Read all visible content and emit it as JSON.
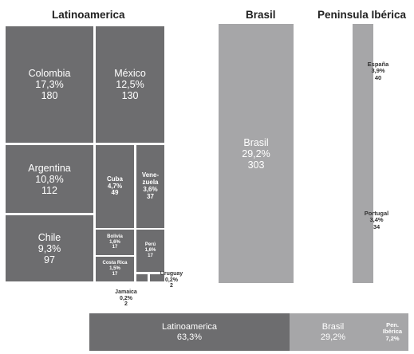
{
  "headers": {
    "latinoamerica": "Latinoamerica",
    "brasil": "Brasil",
    "peninsula": "Peninsula Ibérica"
  },
  "colors": {
    "dark": "#6d6d6f",
    "light": "#a6a6a8",
    "text_light": "#ffffff",
    "text_dark": "#333333"
  },
  "chart_data": [
    {
      "type": "treemap",
      "title": "Latinoamerica",
      "items": [
        {
          "id": "colombia",
          "lines": [
            "Colombia",
            "17,3%",
            "180"
          ],
          "percent": 17.3,
          "value": 180
        },
        {
          "id": "mexico",
          "lines": [
            "México",
            "12,5%",
            "130"
          ],
          "percent": 12.5,
          "value": 130
        },
        {
          "id": "argentina",
          "lines": [
            "Argentina",
            "10,8%",
            "112"
          ],
          "percent": 10.8,
          "value": 112
        },
        {
          "id": "chile",
          "lines": [
            "Chile",
            "9,3%",
            "97"
          ],
          "percent": 9.3,
          "value": 97
        },
        {
          "id": "cuba",
          "lines": [
            "Cuba",
            "4,7%",
            "49"
          ],
          "percent": 4.7,
          "value": 49
        },
        {
          "id": "venezuela",
          "lines": [
            "Vene-",
            "zuela",
            "3,6%",
            "37"
          ],
          "percent": 3.6,
          "value": 37
        },
        {
          "id": "bolivia",
          "lines": [
            "Bolivia",
            "1,6%",
            "17"
          ],
          "percent": 1.6,
          "value": 17
        },
        {
          "id": "peru",
          "lines": [
            "Perú",
            "1,6%",
            "17"
          ],
          "percent": 1.6,
          "value": 17
        },
        {
          "id": "costa-rica",
          "lines": [
            "Costa Rica",
            "1,5%",
            "17"
          ],
          "percent": 1.5,
          "value": 17
        },
        {
          "id": "jamaica",
          "lines": [
            "Jamaica",
            "0,2%",
            "2"
          ],
          "percent": 0.2,
          "value": 2
        },
        {
          "id": "uruguay",
          "lines": [
            "Uruguay",
            "0,2%",
            "2"
          ],
          "percent": 0.2,
          "value": 2
        }
      ]
    },
    {
      "type": "treemap",
      "title": "Brasil",
      "items": [
        {
          "id": "brasil",
          "lines": [
            "Brasil",
            "29,2%",
            "303"
          ],
          "percent": 29.2,
          "value": 303
        }
      ]
    },
    {
      "type": "treemap",
      "title": "Peninsula Ibérica",
      "items": [
        {
          "id": "espana",
          "lines": [
            "España",
            "3,9%",
            "40"
          ],
          "percent": 3.9,
          "value": 40
        },
        {
          "id": "portugal",
          "lines": [
            "Portugal",
            "3,4%",
            "34"
          ],
          "percent": 3.4,
          "value": 34
        }
      ]
    },
    {
      "type": "bar",
      "stacked": true,
      "orientation": "horizontal",
      "items": [
        {
          "id": "total-latinoamerica",
          "lines": [
            "Latinoamerica",
            "63,3%"
          ],
          "percent": 63.3
        },
        {
          "id": "total-brasil",
          "lines": [
            "Brasil",
            "29,2%"
          ],
          "percent": 29.2
        },
        {
          "id": "total-pen",
          "lines": [
            "Pen.",
            "Ibérica",
            "7,2%"
          ],
          "percent": 7.2
        }
      ]
    }
  ]
}
